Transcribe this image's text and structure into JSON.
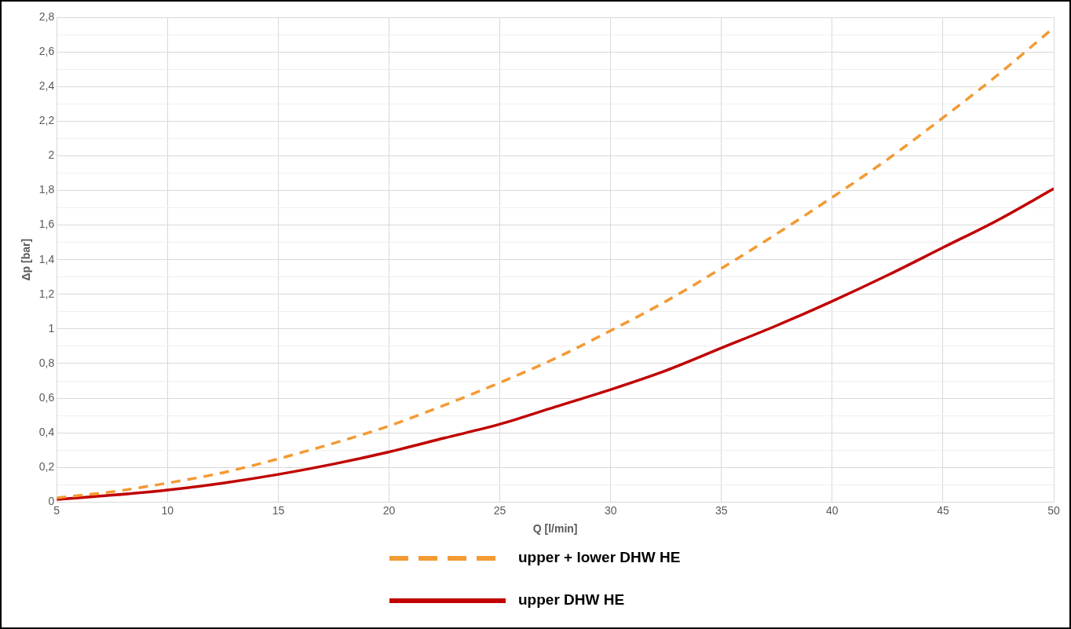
{
  "chart_data": {
    "type": "line",
    "xlabel": "Q [l/min]",
    "ylabel": "Δp [bar]",
    "x": [
      5,
      7.5,
      10,
      12.5,
      15,
      17.5,
      20,
      22.5,
      25,
      27.5,
      30,
      32.5,
      35,
      37.5,
      40,
      42.5,
      45,
      47.5,
      50
    ],
    "series": [
      {
        "name": "upper + lower DHW HE",
        "color": "#f39a33",
        "line_style": "dashed",
        "values": [
          0.025,
          0.06,
          0.11,
          0.17,
          0.25,
          0.34,
          0.44,
          0.56,
          0.69,
          0.83,
          0.99,
          1.16,
          1.35,
          1.55,
          1.76,
          1.98,
          2.22,
          2.47,
          2.74
        ]
      },
      {
        "name": "upper DHW HE",
        "color": "#c00000",
        "line_style": "solid",
        "values": [
          0.015,
          0.04,
          0.07,
          0.11,
          0.16,
          0.22,
          0.29,
          0.37,
          0.45,
          0.55,
          0.65,
          0.76,
          0.89,
          1.02,
          1.16,
          1.31,
          1.47,
          1.63,
          1.81
        ]
      }
    ],
    "xlim": [
      5,
      50
    ],
    "xticks": [
      5,
      10,
      15,
      20,
      25,
      30,
      35,
      40,
      45,
      50
    ],
    "ylim": [
      0,
      2.8
    ],
    "yticks": [
      0,
      {
        "value": 0.1,
        "label": null
      },
      {
        "value": 0.2,
        "label": "0,2"
      },
      {
        "value": 0.3,
        "label": null
      },
      {
        "value": 0.4,
        "label": "0,4"
      },
      {
        "value": 0.5,
        "label": null
      },
      {
        "value": 0.6,
        "label": "0,6"
      },
      {
        "value": 0.7,
        "label": null
      },
      {
        "value": 0.8,
        "label": "0,8"
      },
      {
        "value": 0.9,
        "label": null
      },
      1,
      {
        "value": 1.1,
        "label": null
      },
      {
        "value": 1.2,
        "label": "1,2"
      },
      {
        "value": 1.3,
        "label": null
      },
      {
        "value": 1.4,
        "label": "1,4"
      },
      {
        "value": 1.5,
        "label": null
      },
      {
        "value": 1.6,
        "label": "1,6"
      },
      {
        "value": 1.7,
        "label": null
      },
      {
        "value": 1.8,
        "label": "1,8"
      },
      {
        "value": 1.9,
        "label": null
      },
      2,
      {
        "value": 2.1,
        "label": null
      },
      {
        "value": 2.2,
        "label": "2,2"
      },
      {
        "value": 2.3,
        "label": null
      },
      {
        "value": 2.4,
        "label": "2,4"
      },
      {
        "value": 2.5,
        "label": null
      },
      {
        "value": 2.6,
        "label": "2,6"
      },
      {
        "value": 2.7,
        "label": null
      },
      {
        "value": 2.8,
        "label": "2,8"
      }
    ],
    "grid": true,
    "legend": "bottom",
    "marker": "none"
  }
}
